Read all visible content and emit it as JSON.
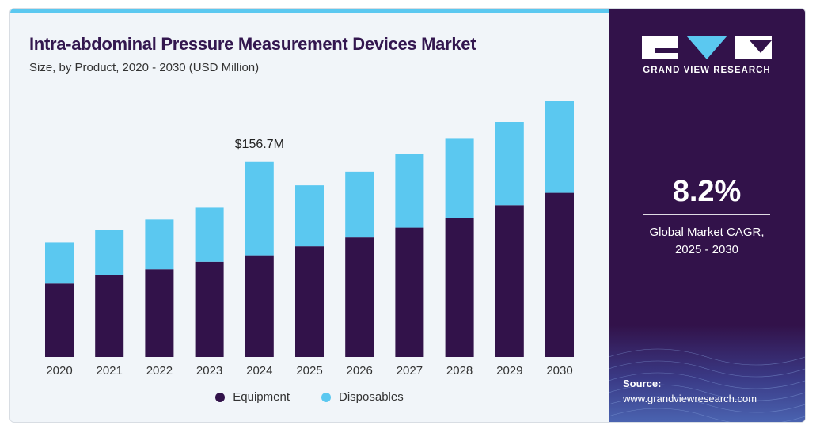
{
  "header": {
    "title": "Intra-abdominal Pressure Measurement Devices Market",
    "subtitle": "Size, by Product, 2020 - 2030 (USD Million)"
  },
  "colors": {
    "equipment": "#32124a",
    "disposables": "#5bc8f0",
    "accent": "#5bc8f0",
    "panel": "#32124a"
  },
  "chart_data": {
    "type": "bar",
    "stacked": true,
    "categories": [
      "2020",
      "2021",
      "2022",
      "2023",
      "2024",
      "2025",
      "2026",
      "2027",
      "2028",
      "2029",
      "2030"
    ],
    "series": [
      {
        "name": "Equipment",
        "values": [
          59,
          66,
          70.5,
          76.5,
          81.7,
          89,
          96,
          104,
          112,
          122,
          132
        ]
      },
      {
        "name": "Disposables",
        "values": [
          33,
          36,
          40,
          43.5,
          75,
          49,
          53,
          59,
          64,
          67,
          74
        ]
      }
    ],
    "annotations": [
      {
        "category": "2024",
        "text": "$156.7M"
      }
    ],
    "title": "Intra-abdominal Pressure Measurement Devices Market",
    "xlabel": "",
    "ylabel": "",
    "ylim": [
      0,
      210
    ],
    "grid": false,
    "legend": "bottom"
  },
  "legend": {
    "items": [
      {
        "label": "Equipment",
        "color": "#32124a"
      },
      {
        "label": "Disposables",
        "color": "#5bc8f0"
      }
    ]
  },
  "sidebar": {
    "logo_text": "GRAND VIEW RESEARCH",
    "cagr_value": "8.2%",
    "cagr_label_line1": "Global Market CAGR,",
    "cagr_label_line2": "2025 - 2030",
    "source_heading": "Source:",
    "source_url": "www.grandviewresearch.com"
  }
}
